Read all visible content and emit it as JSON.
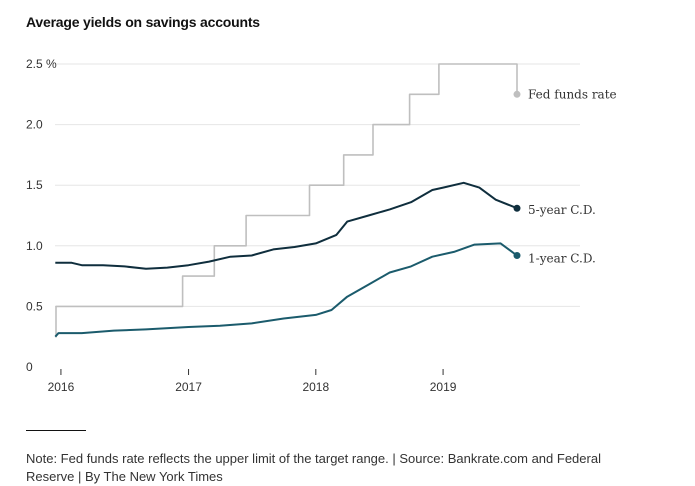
{
  "chart_data": {
    "type": "line",
    "title": "Average yields on savings accounts",
    "xlabel": "",
    "ylabel": "",
    "ylim": [
      0,
      2.5
    ],
    "xlim": [
      "2015-12-15",
      "2019-08-01"
    ],
    "y_ticks": [
      {
        "value": 0,
        "label": "0"
      },
      {
        "value": 0.5,
        "label": "0.5"
      },
      {
        "value": 1.0,
        "label": "1.0"
      },
      {
        "value": 1.5,
        "label": "1.5"
      },
      {
        "value": 2.0,
        "label": "2.0"
      },
      {
        "value": 2.5,
        "label": "2.5 %"
      }
    ],
    "x_ticks": [
      {
        "value": "2016-01-01",
        "label": "2016"
      },
      {
        "value": "2017-01-01",
        "label": "2017"
      },
      {
        "value": "2018-01-01",
        "label": "2018"
      },
      {
        "value": "2019-01-01",
        "label": "2019"
      }
    ],
    "grid": "horizontal",
    "legend": "direct labels at right",
    "series": [
      {
        "name": "Fed funds rate",
        "color": "#bfbfbf",
        "step": true,
        "points": [
          [
            "2015-12-16",
            0.25
          ],
          [
            "2015-12-18",
            0.5
          ],
          [
            "2016-12-15",
            0.75
          ],
          [
            "2017-03-16",
            1.0
          ],
          [
            "2017-06-15",
            1.25
          ],
          [
            "2017-12-14",
            1.5
          ],
          [
            "2018-03-22",
            1.75
          ],
          [
            "2018-06-14",
            2.0
          ],
          [
            "2018-09-27",
            2.25
          ],
          [
            "2018-12-20",
            2.5
          ],
          [
            "2019-07-26",
            2.5
          ],
          [
            "2019-08-01",
            2.25
          ]
        ]
      },
      {
        "name": "5-year C.D.",
        "color": "#0f2e3d",
        "step": false,
        "points": [
          [
            "2015-12-16",
            0.86
          ],
          [
            "2016-02-01",
            0.86
          ],
          [
            "2016-03-01",
            0.84
          ],
          [
            "2016-05-01",
            0.84
          ],
          [
            "2016-07-01",
            0.83
          ],
          [
            "2016-09-01",
            0.81
          ],
          [
            "2016-11-01",
            0.82
          ],
          [
            "2017-01-01",
            0.84
          ],
          [
            "2017-03-01",
            0.87
          ],
          [
            "2017-05-01",
            0.91
          ],
          [
            "2017-07-01",
            0.92
          ],
          [
            "2017-09-01",
            0.97
          ],
          [
            "2017-11-01",
            0.99
          ],
          [
            "2018-01-01",
            1.02
          ],
          [
            "2018-03-01",
            1.09
          ],
          [
            "2018-04-01",
            1.2
          ],
          [
            "2018-06-01",
            1.25
          ],
          [
            "2018-08-01",
            1.3
          ],
          [
            "2018-10-01",
            1.36
          ],
          [
            "2018-12-01",
            1.46
          ],
          [
            "2019-01-01",
            1.48
          ],
          [
            "2019-03-01",
            1.52
          ],
          [
            "2019-04-15",
            1.48
          ],
          [
            "2019-06-01",
            1.38
          ],
          [
            "2019-08-01",
            1.31
          ]
        ]
      },
      {
        "name": "1-year C.D.",
        "color": "#1b5b6c",
        "step": false,
        "points": [
          [
            "2015-12-16",
            0.25
          ],
          [
            "2015-12-25",
            0.28
          ],
          [
            "2016-03-01",
            0.28
          ],
          [
            "2016-06-01",
            0.3
          ],
          [
            "2016-09-01",
            0.31
          ],
          [
            "2017-01-01",
            0.33
          ],
          [
            "2017-04-01",
            0.34
          ],
          [
            "2017-07-01",
            0.36
          ],
          [
            "2017-10-01",
            0.4
          ],
          [
            "2018-01-01",
            0.43
          ],
          [
            "2018-02-15",
            0.47
          ],
          [
            "2018-04-01",
            0.58
          ],
          [
            "2018-06-01",
            0.68
          ],
          [
            "2018-08-01",
            0.78
          ],
          [
            "2018-10-01",
            0.83
          ],
          [
            "2018-12-01",
            0.91
          ],
          [
            "2019-02-01",
            0.95
          ],
          [
            "2019-04-01",
            1.01
          ],
          [
            "2019-06-15",
            1.02
          ],
          [
            "2019-08-01",
            0.92
          ]
        ]
      }
    ]
  },
  "footer": {
    "note": "Note: Fed funds rate reflects the upper limit of the target range. | Source: Bankrate.com and Federal Reserve | By The New York Times"
  }
}
